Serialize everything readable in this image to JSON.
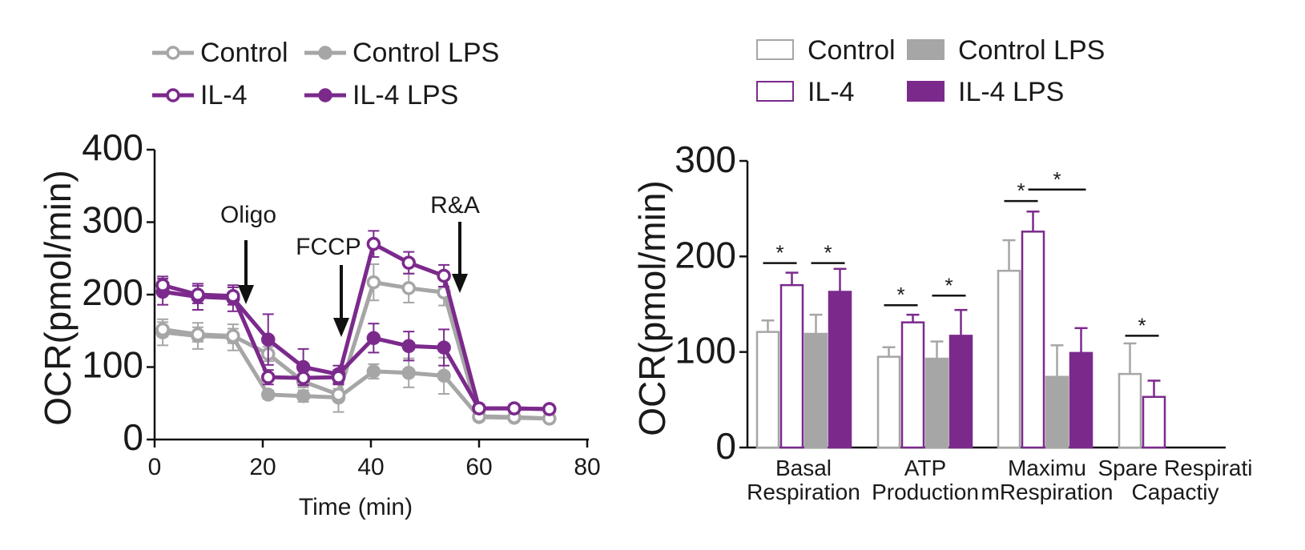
{
  "chart_data": [
    {
      "type": "line",
      "title": "",
      "xlabel": "Time (min)",
      "ylabel": "OCR(pmol/min)",
      "xlim": [
        0,
        80
      ],
      "ylim": [
        0,
        400
      ],
      "xticks": [
        "0",
        "20",
        "40",
        "60",
        "80"
      ],
      "yticks": [
        "0",
        "100",
        "200",
        "300",
        "400"
      ],
      "x": [
        1.5,
        8,
        14.5,
        21,
        27.5,
        34,
        40.5,
        47,
        53.5,
        60,
        66.5,
        73
      ],
      "series": [
        {
          "name": "Control",
          "style": "open",
          "color": "#a6a6a6",
          "values": [
            152,
            145,
            143,
            118,
            80,
            62,
            217,
            209,
            203,
            32,
            31,
            29
          ],
          "errors": [
            10,
            10,
            10,
            10,
            8,
            8,
            25,
            20,
            18,
            4,
            4,
            4
          ]
        },
        {
          "name": "Control LPS",
          "style": "filled",
          "color": "#a6a6a6",
          "values": [
            148,
            143,
            141,
            62,
            60,
            58,
            94,
            92,
            88,
            31,
            30,
            29
          ],
          "errors": [
            18,
            18,
            18,
            6,
            8,
            20,
            10,
            20,
            25,
            4,
            4,
            4
          ]
        },
        {
          "name": "IL-4",
          "style": "open",
          "color": "#7b2a8c",
          "values": [
            213,
            200,
            198,
            86,
            85,
            86,
            270,
            244,
            226,
            43,
            43,
            42
          ],
          "errors": [
            12,
            12,
            12,
            10,
            10,
            10,
            18,
            15,
            15,
            4,
            4,
            4
          ]
        },
        {
          "name": "IL-4 LPS",
          "style": "filled",
          "color": "#7b2a8c",
          "values": [
            204,
            197,
            195,
            138,
            100,
            90,
            140,
            129,
            127,
            43,
            43,
            42
          ],
          "errors": [
            18,
            18,
            18,
            35,
            25,
            12,
            20,
            20,
            25,
            4,
            4,
            4
          ]
        }
      ],
      "annotations": [
        {
          "label": "Oligo",
          "x": 17
        },
        {
          "label": "FCCP",
          "x": 35
        },
        {
          "label": "R&A",
          "x": 56.5
        }
      ],
      "legend_position": "top"
    },
    {
      "type": "bar",
      "title": "",
      "xlabel": "",
      "ylabel": "OCR(pmol/min)",
      "ylim": [
        0,
        300
      ],
      "yticks": [
        "0",
        "100",
        "200",
        "300"
      ],
      "categories": [
        {
          "line1": "Basal",
          "line2": "Respiration"
        },
        {
          "line1": "ATP",
          "line2": "Production"
        },
        {
          "line1": "Maximu",
          "line2": "mRespiration"
        },
        {
          "line1": "Spare Respirati",
          "line2": "Capactiy"
        }
      ],
      "series": [
        {
          "name": "Control",
          "style": "open",
          "color": "#a6a6a6",
          "values": [
            121,
            95,
            185,
            77
          ],
          "errors": [
            12,
            10,
            32,
            32
          ]
        },
        {
          "name": "IL-4",
          "style": "open",
          "color": "#7b2a8c",
          "values": [
            170,
            131,
            226,
            53
          ],
          "errors": [
            13,
            8,
            21,
            17
          ]
        },
        {
          "name": "Control LPS",
          "style": "filled",
          "color": "#a6a6a6",
          "values": [
            119,
            93,
            74,
            null
          ],
          "errors": [
            20,
            18,
            33,
            null
          ]
        },
        {
          "name": "IL-4 LPS",
          "style": "filled",
          "color": "#7b2a8c",
          "values": [
            163,
            117,
            99,
            null
          ],
          "errors": [
            24,
            27,
            26,
            null
          ]
        }
      ],
      "significance": [
        {
          "label": "*",
          "category": 0,
          "from": 0,
          "to": 1,
          "y": 193
        },
        {
          "label": "*",
          "category": 0,
          "from": 2,
          "to": 3,
          "y": 193
        },
        {
          "label": "*",
          "category": 1,
          "from": 0,
          "to": 1,
          "y": 149
        },
        {
          "label": "*",
          "category": 1,
          "from": 2,
          "to": 3,
          "y": 159
        },
        {
          "label": "*",
          "category": 2,
          "from": 0,
          "to": 1,
          "y": 258
        },
        {
          "label": "*",
          "category": 2,
          "from": 1,
          "to": 3,
          "y": 270
        },
        {
          "label": "*",
          "category": 3,
          "from": 0,
          "to": 1,
          "y": 117
        }
      ],
      "legend_position": "top"
    }
  ]
}
